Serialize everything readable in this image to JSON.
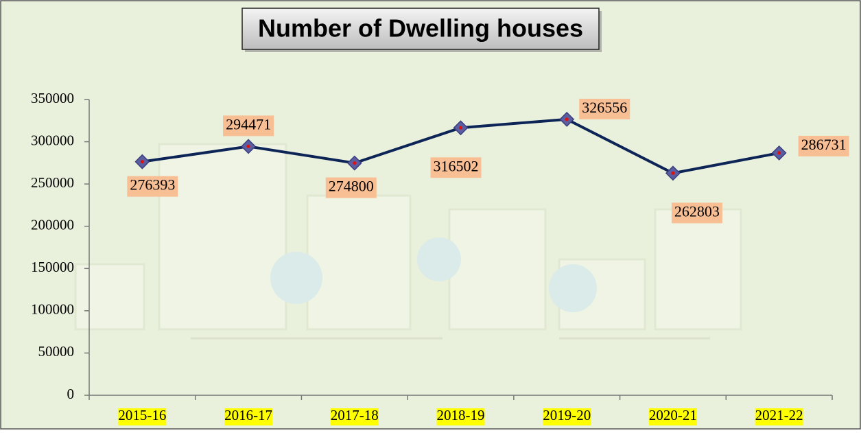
{
  "chart_data": {
    "type": "line",
    "title": "Number of Dwelling houses",
    "categories": [
      "2015-16",
      "2016-17",
      "2017-18",
      "2018-19",
      "2019-20",
      "2020-21",
      "2021-22"
    ],
    "values": [
      276393,
      294471,
      274800,
      316502,
      326556,
      262803,
      286731
    ],
    "color": "#0d2457",
    "ylim": [
      0,
      350000
    ],
    "yticks": [
      0,
      50000,
      100000,
      150000,
      200000,
      250000,
      300000,
      350000
    ]
  }
}
